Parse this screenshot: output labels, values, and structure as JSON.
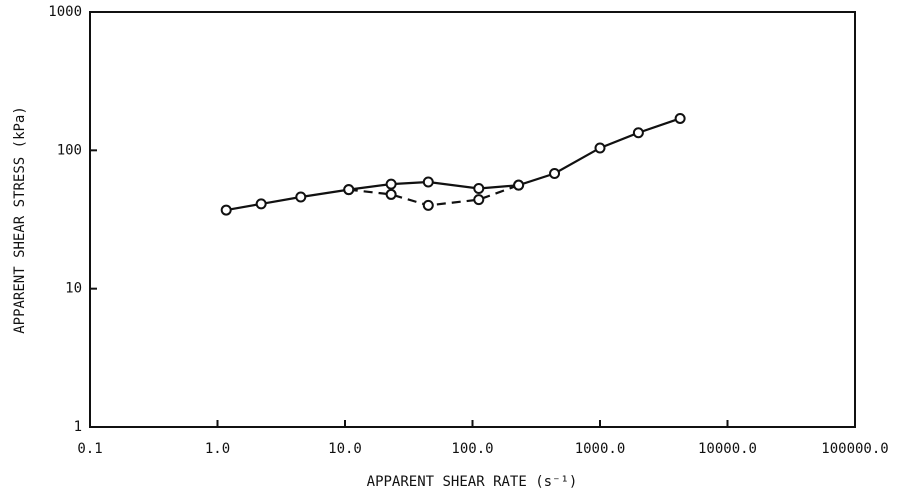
{
  "chart_data": {
    "type": "line",
    "xlabel": "APPARENT SHEAR RATE (s⁻¹)",
    "ylabel": "APPARENT SHEAR STRESS (kPa)",
    "xscale": "log",
    "yscale": "log",
    "xlim": [
      0.1,
      100000
    ],
    "ylim": [
      1,
      1000
    ],
    "xticks": [
      0.1,
      {
        "value": 1,
        "label": "1.0"
      },
      {
        "value": 10,
        "label": "10.0"
      },
      {
        "value": 100,
        "label": "100.0"
      },
      {
        "value": 1000,
        "label": "1000.0"
      },
      {
        "value": 10000,
        "label": "10000.0"
      },
      {
        "value": 100000,
        "label": "100000.0"
      }
    ],
    "yticks": [
      1,
      10,
      100,
      1000
    ],
    "grid": false,
    "series": [
      {
        "color": "#111111",
        "linestyle": "solid",
        "marker": "open-circle",
        "x": [
          1.17,
          2.2,
          4.5,
          10.7,
          23,
          45,
          112,
          230,
          440,
          1000,
          2000,
          4250
        ],
        "values": [
          37,
          41,
          46,
          52,
          57,
          59,
          53,
          56,
          68,
          104,
          134,
          170
        ]
      },
      {
        "color": "#111111",
        "linestyle": "dashed",
        "marker": "open-circle",
        "x": [
          10.7,
          23,
          45,
          112,
          230
        ],
        "values": [
          52,
          48,
          40,
          44,
          56
        ]
      }
    ]
  }
}
